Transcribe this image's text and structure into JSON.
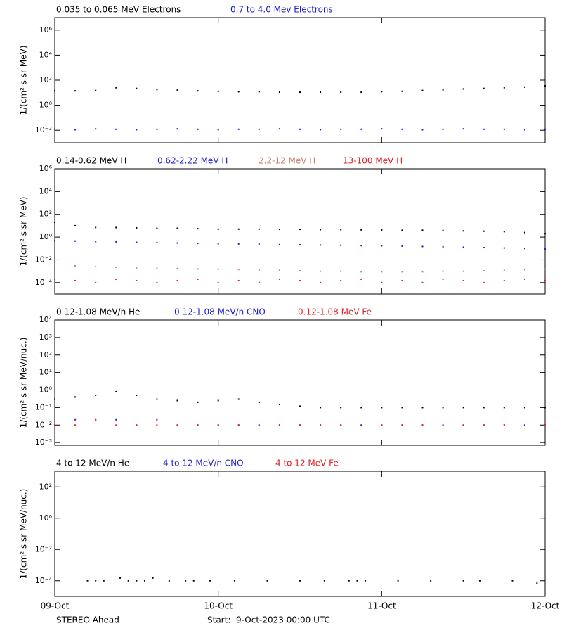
{
  "chart_data": [
    {
      "type": "scatter",
      "ylabel": "1/(cm² s sr MeV)",
      "log_y": true,
      "xlim": [
        0,
        3
      ],
      "xticks": [
        {
          "value": 0,
          "label": "09-Oct"
        },
        {
          "value": 1,
          "label": "10-Oct"
        },
        {
          "value": 2,
          "label": "11-Oct"
        },
        {
          "value": 3,
          "label": "12-Oct"
        }
      ],
      "ylim": [
        0.001,
        10000000
      ],
      "yticks": [
        {
          "value": 0.01,
          "label": "10⁻²"
        },
        {
          "value": 1,
          "label": "10⁰"
        },
        {
          "value": 100,
          "label": "10²"
        },
        {
          "value": 10000,
          "label": "10⁴"
        },
        {
          "value": 1000000,
          "label": "10⁶"
        }
      ],
      "x": [
        0,
        0.125,
        0.25,
        0.375,
        0.5,
        0.625,
        0.75,
        0.875,
        1,
        1.125,
        1.25,
        1.375,
        1.5,
        1.625,
        1.75,
        1.875,
        2,
        2.125,
        2.25,
        2.375,
        2.5,
        2.625,
        2.75,
        2.875,
        3
      ],
      "series": [
        {
          "name": "0.035 to 0.065 MeV Electrons",
          "color": "#000000",
          "values": [
            14,
            14,
            15,
            25,
            22,
            18,
            16,
            14,
            13,
            12,
            12,
            11,
            11,
            11,
            11,
            11,
            12,
            13,
            15,
            17,
            20,
            22,
            25,
            28,
            35
          ]
        },
        {
          "name": "0.7 to 4.0 Mev Electrons",
          "color": "#2020d0",
          "values": [
            0.012,
            0.011,
            0.013,
            0.012,
            0.011,
            0.012,
            0.013,
            0.012,
            0.011,
            0.012,
            0.012,
            0.013,
            0.012,
            0.011,
            0.012,
            0.012,
            0.013,
            0.012,
            0.011,
            0.012,
            0.013,
            0.012,
            0.012,
            0.011,
            0.012
          ]
        }
      ]
    },
    {
      "type": "scatter",
      "ylabel": "1/(cm² s sr MeV)",
      "log_y": true,
      "xlim": [
        0,
        3
      ],
      "xticks": [
        {
          "value": 0,
          "label": "09-Oct"
        },
        {
          "value": 1,
          "label": "10-Oct"
        },
        {
          "value": 2,
          "label": "11-Oct"
        },
        {
          "value": 3,
          "label": "12-Oct"
        }
      ],
      "ylim": [
        1e-05,
        1000000
      ],
      "yticks": [
        {
          "value": 0.0001,
          "label": "10⁻⁴"
        },
        {
          "value": 0.01,
          "label": "10⁻²"
        },
        {
          "value": 1,
          "label": "10⁰"
        },
        {
          "value": 100,
          "label": "10²"
        },
        {
          "value": 10000,
          "label": "10⁴"
        },
        {
          "value": 1000000,
          "label": "10⁶"
        }
      ],
      "x": [
        0,
        0.125,
        0.25,
        0.375,
        0.5,
        0.625,
        0.75,
        0.875,
        1,
        1.125,
        1.25,
        1.375,
        1.5,
        1.625,
        1.75,
        1.875,
        2,
        2.125,
        2.25,
        2.375,
        2.5,
        2.625,
        2.75,
        2.875,
        3
      ],
      "series": [
        {
          "name": "0.14-0.62 MeV H",
          "color": "#000000",
          "values": [
            20,
            10,
            7,
            7,
            6.5,
            6,
            6,
            5.5,
            5,
            5,
            5,
            4.8,
            4.8,
            4.5,
            4.5,
            4.3,
            4.2,
            4,
            4,
            3.8,
            3.5,
            3.3,
            3,
            2.5,
            2
          ]
        },
        {
          "name": "0.62-2.22 MeV H",
          "color": "#2020d0",
          "values": [
            0.5,
            0.45,
            0.4,
            0.38,
            0.35,
            0.33,
            0.3,
            0.28,
            0.26,
            0.25,
            0.24,
            0.22,
            0.21,
            0.2,
            0.19,
            0.18,
            0.17,
            0.16,
            0.15,
            0.14,
            0.13,
            0.12,
            0.11,
            0.1,
            0.09
          ]
        },
        {
          "name": "2.2-12 MeV H",
          "color": "#c8806a",
          "values": [
            0.004,
            0.003,
            0.0025,
            0.0022,
            0.002,
            0.0018,
            0.0017,
            0.0016,
            0.0015,
            0.0014,
            0.0013,
            0.0012,
            0.0011,
            0.001,
            0.001,
            0.0009,
            0.0009,
            0.0009,
            0.0009,
            0.001,
            0.001,
            0.0011,
            0.0012,
            0.0014,
            0.0015
          ]
        },
        {
          "name": "13-100 MeV H",
          "color": "#e02020",
          "values": [
            0.0002,
            0.00015,
            0.0001,
            0.0002,
            0.00015,
            0.0001,
            0.00015,
            0.0002,
            0.0001,
            0.00015,
            0.0001,
            0.0002,
            0.00015,
            0.0001,
            0.00015,
            0.0002,
            0.0001,
            0.00015,
            0.0001,
            0.0002,
            0.00015,
            0.0001,
            0.00015,
            0.0002,
            0.00015
          ]
        }
      ]
    },
    {
      "type": "scatter",
      "ylabel": "1/(cm² s sr MeV/nuc.)",
      "log_y": true,
      "xlim": [
        0,
        3
      ],
      "xticks": [
        {
          "value": 0,
          "label": "09-Oct"
        },
        {
          "value": 1,
          "label": "10-Oct"
        },
        {
          "value": 2,
          "label": "11-Oct"
        },
        {
          "value": 3,
          "label": "12-Oct"
        }
      ],
      "ylim": [
        0.0007,
        10000
      ],
      "yticks": [
        {
          "value": 0.001,
          "label": "10⁻³"
        },
        {
          "value": 0.01,
          "label": "10⁻²"
        },
        {
          "value": 0.1,
          "label": "10⁻¹"
        },
        {
          "value": 1,
          "label": "10⁰"
        },
        {
          "value": 10,
          "label": "10¹"
        },
        {
          "value": 100,
          "label": "10²"
        },
        {
          "value": 1000,
          "label": "10³"
        },
        {
          "value": 10000,
          "label": "10⁴"
        }
      ],
      "x": [
        0,
        0.125,
        0.25,
        0.375,
        0.5,
        0.625,
        0.75,
        0.875,
        1,
        1.125,
        1.25,
        1.375,
        1.5,
        1.625,
        1.75,
        1.875,
        2,
        2.125,
        2.25,
        2.375,
        2.5,
        2.625,
        2.75,
        2.875,
        3
      ],
      "series": [
        {
          "name": "0.12-1.08 MeV/n He",
          "color": "#000000",
          "values": [
            0.3,
            0.4,
            0.5,
            0.8,
            0.5,
            0.3,
            0.25,
            0.2,
            0.25,
            0.3,
            0.2,
            0.15,
            0.12,
            0.1,
            0.1,
            0.1,
            0.1,
            0.1,
            0.1,
            0.1,
            0.1,
            0.1,
            0.1,
            0.1,
            0.1
          ]
        },
        {
          "name": "0.12-1.08 MeV/n CNO",
          "color": "#2020d0",
          "values": [
            0.01,
            0.02,
            0.02,
            0.02,
            0.01,
            0.02,
            0.01,
            0.01,
            0.01,
            0.01,
            0.01,
            0.01,
            0.01,
            0.01,
            0.01,
            0.01,
            0.01,
            0.01,
            0.01,
            0.01,
            0.01,
            0.01,
            0.01,
            0.01,
            0.01
          ]
        },
        {
          "name": "0.12-1.08 MeV Fe",
          "color": "#e02020",
          "values": [
            0.01,
            0.01,
            0.02,
            0.01,
            0.01,
            0.01,
            0.01,
            0.01,
            0.01,
            0.01,
            null,
            0.01,
            0.01,
            0.01,
            0.01,
            null,
            0.01,
            0.01,
            0.01,
            null,
            0.01,
            0.01,
            0.01,
            null,
            0.01
          ]
        }
      ]
    },
    {
      "type": "scatter",
      "ylabel": "1/(cm² s sr MeV/nuc.)",
      "log_y": true,
      "xlim": [
        0,
        3
      ],
      "xticks": [
        {
          "value": 0,
          "label": "09-Oct"
        },
        {
          "value": 1,
          "label": "10-Oct"
        },
        {
          "value": 2,
          "label": "11-Oct"
        },
        {
          "value": 3,
          "label": "12-Oct"
        }
      ],
      "ylim": [
        1e-05,
        1000
      ],
      "yticks": [
        {
          "value": 0.0001,
          "label": "10⁻⁴"
        },
        {
          "value": 0.01,
          "label": "10⁻²"
        },
        {
          "value": 1,
          "label": "10⁰"
        },
        {
          "value": 100,
          "label": "10²"
        }
      ],
      "x": [
        0.2,
        0.25,
        0.3,
        0.4,
        0.45,
        0.5,
        0.55,
        0.6,
        0.7,
        0.8,
        0.85,
        0.95,
        1.1,
        1.3,
        1.5,
        1.65,
        1.8,
        1.85,
        1.9,
        2.1,
        2.3,
        2.5,
        2.6,
        2.8,
        2.95
      ],
      "series": [
        {
          "name": "4 to 12 MeV/n He",
          "color": "#000000",
          "values": [
            0.0001,
            0.0001,
            0.0001,
            0.00015,
            0.0001,
            0.0001,
            0.0001,
            0.00015,
            0.0001,
            0.0001,
            0.0001,
            0.0001,
            0.0001,
            0.0001,
            0.0001,
            0.0001,
            0.0001,
            0.0001,
            0.0001,
            0.0001,
            0.0001,
            0.0001,
            0.0001,
            0.0001,
            7e-05
          ]
        },
        {
          "name": "4 to 12 MeV/n CNO",
          "color": "#2020d0",
          "values": [
            null,
            null,
            null,
            null,
            null,
            null,
            null,
            null,
            null,
            null,
            null,
            null,
            null,
            null,
            null,
            null,
            null,
            null,
            null,
            null,
            null,
            null,
            null,
            null,
            null
          ]
        },
        {
          "name": "4 to 12 MeV Fe",
          "color": "#e02020",
          "values": [
            null,
            null,
            null,
            null,
            null,
            null,
            null,
            null,
            null,
            null,
            null,
            null,
            null,
            null,
            null,
            null,
            null,
            null,
            null,
            null,
            null,
            null,
            null,
            null,
            null
          ]
        }
      ]
    }
  ],
  "footer": {
    "spacecraft": "STEREO Ahead",
    "start": "Start:  9-Oct-2023 00:00 UTC"
  }
}
